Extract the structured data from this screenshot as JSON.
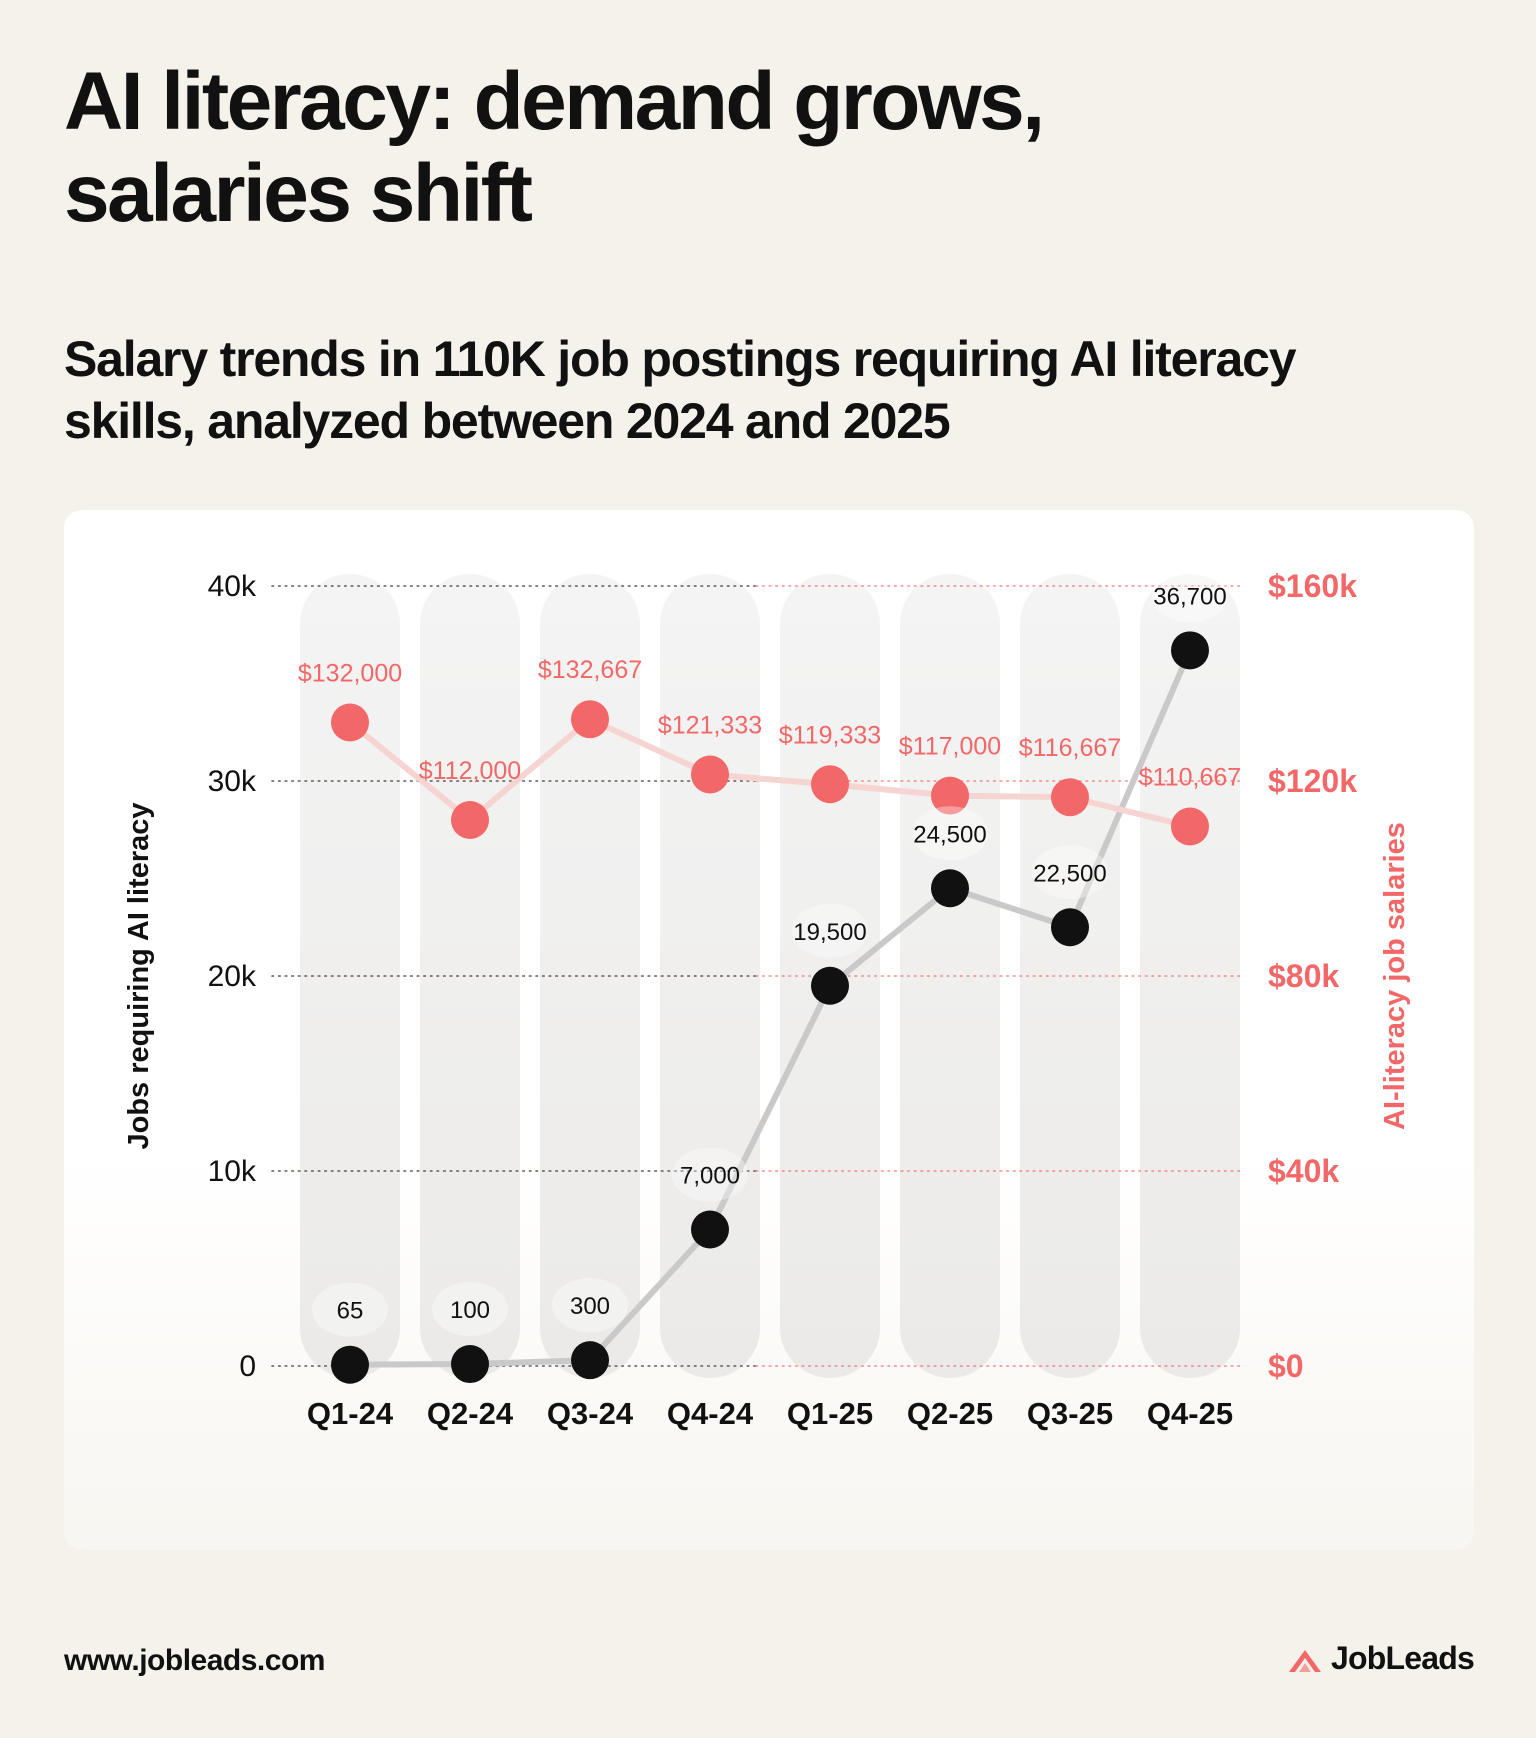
{
  "header": {
    "title_lines": [
      "AI literacy: demand grows,",
      "salaries shift"
    ],
    "subtitle_lines": [
      "Salary trends in 110K job postings requiring AI literacy",
      "skills, analyzed between 2024 and 2025"
    ]
  },
  "chart_data": {
    "type": "line",
    "categories": [
      "Q1-24",
      "Q2-24",
      "Q3-24",
      "Q4-24",
      "Q1-25",
      "Q2-25",
      "Q3-25",
      "Q4-25"
    ],
    "series": [
      {
        "name": "",
        "axis": "left",
        "values": [
          65,
          100,
          300,
          7000,
          19500,
          24500,
          22500,
          36700
        ],
        "labels": [
          "65",
          "100",
          "300",
          "7,000",
          "19,500",
          "24,500",
          "22,500",
          "36,700"
        ],
        "color": "#111111",
        "line_color": "#c9c9c9"
      },
      {
        "name": "",
        "axis": "right",
        "values": [
          132000,
          112000,
          132667,
          121333,
          119333,
          117000,
          116667,
          110667
        ],
        "labels": [
          "$132,000",
          "$112,000",
          "$132,667",
          "$121,333",
          "$119,333",
          "$117,000",
          "$116,667",
          "$110,667"
        ],
        "color": "#f26767",
        "line_color": "#f6d4d2"
      }
    ],
    "left_axis": {
      "label": "Jobs requiring AI literacy",
      "range": [
        0,
        40000
      ],
      "ticks": [
        0,
        10000,
        20000,
        30000,
        40000
      ],
      "tick_labels": [
        "0",
        "10k",
        "20k",
        "30k",
        "40k"
      ],
      "color": "#111111"
    },
    "right_axis": {
      "label": "AI-literacy job salaries",
      "range": [
        0,
        160000
      ],
      "ticks": [
        0,
        40000,
        80000,
        120000,
        160000
      ],
      "tick_labels": [
        "$0",
        "$40k",
        "$80k",
        "$120k",
        "$160k"
      ],
      "color": "#f26767"
    },
    "grid": true,
    "legend": "none"
  },
  "footer": {
    "url": "www.jobleads.com",
    "brand": "JobLeads",
    "brand_color": "#f26767"
  }
}
